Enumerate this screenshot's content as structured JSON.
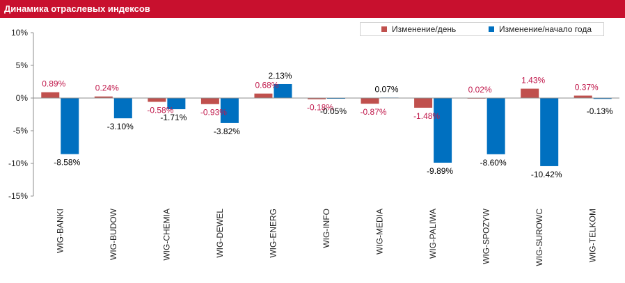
{
  "header": {
    "title": "Динамика отраслевых индексов"
  },
  "chart_data": {
    "type": "bar",
    "title": "Динамика отраслевых индексов",
    "categories": [
      "WIG-BANKI",
      "WIG-BUDOW",
      "WIG-CHEMIA",
      "WIG-DEWEL",
      "WIG-ENERG",
      "WIG-INFO",
      "WIG-MEDIA",
      "WIG-PALIWA",
      "WIG-SPOZYW",
      "WIG-SUROWC",
      "WIG-TELKOM"
    ],
    "series": [
      {
        "name": "Изменение/день",
        "color": "#c0504d",
        "values": [
          0.89,
          0.24,
          -0.58,
          -0.93,
          0.68,
          -0.18,
          -0.87,
          -1.48,
          0.02,
          1.43,
          0.37
        ],
        "labels": [
          "0.89%",
          "0.24%",
          "-0.58%",
          "-0.93%",
          "0.68%",
          "-0.18%",
          "-0.87%",
          "-1.48%",
          "0.02%",
          "1.43%",
          "0.37%"
        ],
        "label_color": "#c0174a"
      },
      {
        "name": "Изменение/начало года",
        "color": "#0070c0",
        "values": [
          -8.58,
          -3.1,
          -1.71,
          -3.82,
          2.13,
          -0.05,
          0.07,
          -9.89,
          -8.6,
          -10.42,
          -0.13
        ],
        "labels": [
          "-8.58%",
          "-3.10%",
          "-1.71%",
          "-3.82%",
          "2.13%",
          "-0.05%",
          "0.07%",
          "-9.89%",
          "-8.60%",
          "-10.42%",
          "-0.13%"
        ],
        "label_color": "#000000"
      }
    ],
    "ylim": [
      -15,
      10
    ],
    "yticks": [
      10,
      5,
      0,
      -5,
      -10,
      -15
    ],
    "ytick_labels": [
      "10%",
      "5%",
      "0%",
      "-5%",
      "-10%",
      "-15%"
    ],
    "legend_position": "top-right",
    "grid": false
  }
}
